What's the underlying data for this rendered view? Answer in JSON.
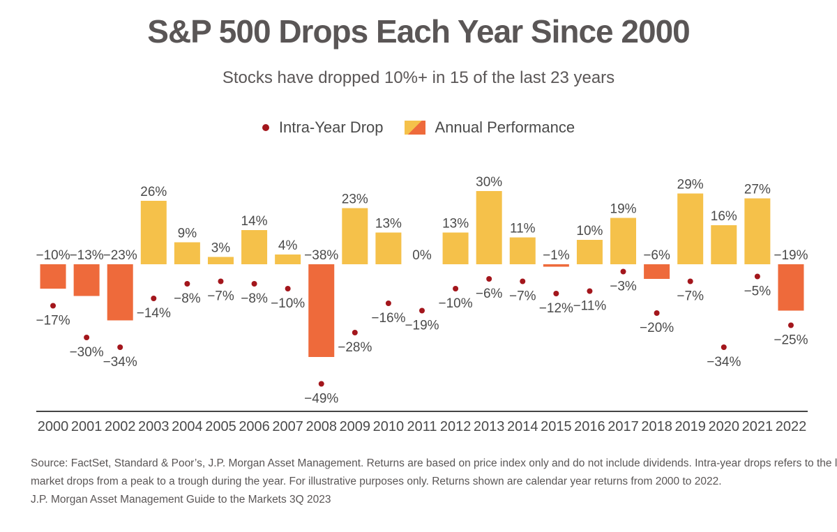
{
  "header": {
    "title": "S&P 500 Drops Each Year Since 2000",
    "subtitle": "Stocks have dropped 10%+ in 15 of the last 23 years"
  },
  "legend": {
    "drop_label": "Intra-Year Drop",
    "performance_label": "Annual Performance"
  },
  "colors": {
    "positive": "#f5c14a",
    "negative": "#ee6a3b",
    "dot": "#a3161c",
    "axis": "#444444",
    "text": "#4a4a4a"
  },
  "chart_data": {
    "type": "bar",
    "categories": [
      "2000",
      "2001",
      "2002",
      "2003",
      "2004",
      "2005",
      "2006",
      "2007",
      "2008",
      "2009",
      "2010",
      "2011",
      "2012",
      "2013",
      "2014",
      "2015",
      "2016",
      "2017",
      "2018",
      "2019",
      "2020",
      "2021",
      "2022"
    ],
    "series": [
      {
        "name": "Annual Performance",
        "type": "bar",
        "values": [
          -10,
          -13,
          -23,
          26,
          9,
          3,
          14,
          4,
          -38,
          23,
          13,
          0,
          13,
          30,
          11,
          -1,
          10,
          19,
          -6,
          29,
          16,
          27,
          -19
        ]
      },
      {
        "name": "Intra-Year Drop",
        "type": "scatter",
        "values": [
          -17,
          -30,
          -34,
          -14,
          -8,
          -7,
          -8,
          -10,
          -49,
          -28,
          -16,
          -19,
          -10,
          -6,
          -7,
          -12,
          -11,
          -3,
          -20,
          -7,
          -34,
          -5,
          -25
        ]
      }
    ],
    "value_suffix": "%",
    "ylim": [
      -60,
      35
    ]
  },
  "source": {
    "line1": "Source: FactSet, Standard & Poor’s, J.P. Morgan Asset Management. Returns are based on price index only and do not include dividends. Intra-year drops refers to the largest",
    "line2": "market drops from a peak to a trough during the year. For illustrative purposes only. Returns shown are calendar year returns from 2000 to 2022.",
    "line3": "J.P. Morgan Asset Management Guide to the Markets 3Q 2023"
  }
}
